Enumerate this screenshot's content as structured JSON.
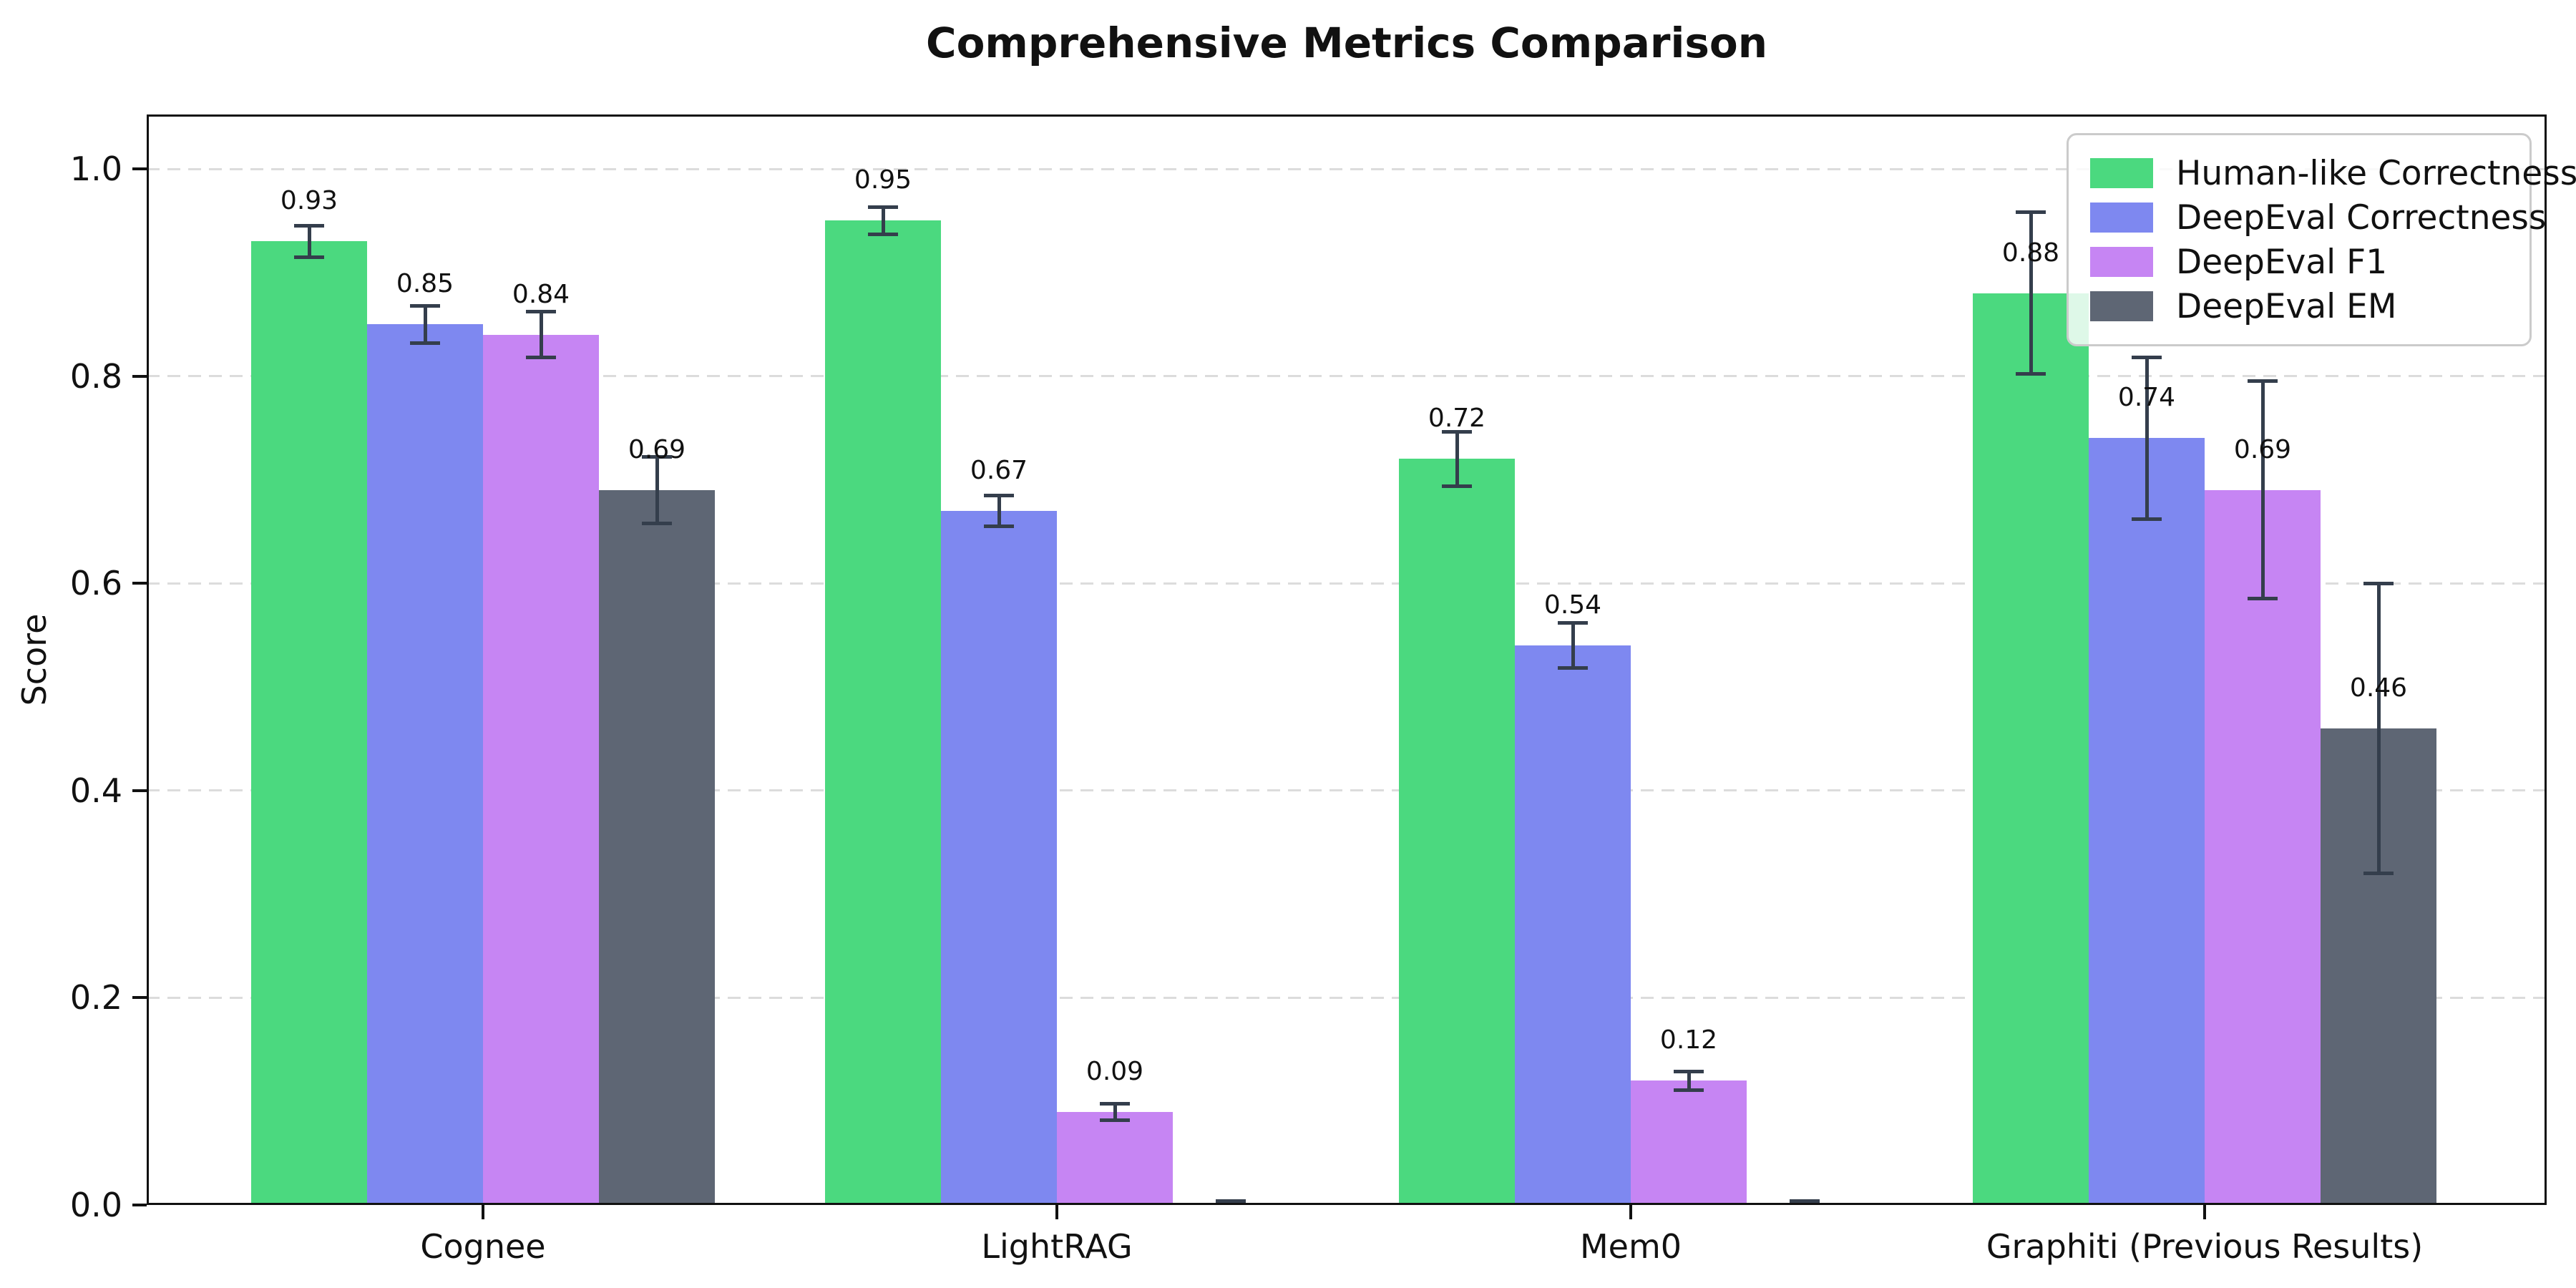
{
  "chart_data": {
    "type": "bar",
    "title": "Comprehensive Metrics Comparison",
    "xlabel": "",
    "ylabel": "Score",
    "ylim": [
      0,
      1.05
    ],
    "grid": "horizontal-dashed",
    "legend_position": "upper-right",
    "categories": [
      "Cognee",
      "LightRAG",
      "Mem0",
      "Graphiti (Previous Results)"
    ],
    "yticks": [
      0.0,
      0.2,
      0.4,
      0.6,
      0.8,
      1.0
    ],
    "ytick_labels": [
      "0.0",
      "0.2",
      "0.4",
      "0.6",
      "0.8",
      "1.0"
    ],
    "series": [
      {
        "name": "Human-like Correctness",
        "color": "#4bd97f",
        "values": [
          0.93,
          0.95,
          0.72,
          0.88
        ],
        "errors": [
          0.015,
          0.013,
          0.026,
          0.078
        ],
        "labels": [
          "0.93",
          "0.95",
          "0.72",
          "0.88"
        ]
      },
      {
        "name": "DeepEval Correctness",
        "color": "#7e88f0",
        "values": [
          0.85,
          0.67,
          0.54,
          0.74
        ],
        "errors": [
          0.018,
          0.015,
          0.022,
          0.078
        ],
        "labels": [
          "0.85",
          "0.67",
          "0.54",
          "0.74"
        ]
      },
      {
        "name": "DeepEval F1",
        "color": "#c685f3",
        "values": [
          0.84,
          0.09,
          0.12,
          0.69
        ],
        "errors": [
          0.022,
          0.008,
          0.009,
          0.105
        ],
        "labels": [
          "0.84",
          "0.09",
          "0.12",
          "0.69"
        ]
      },
      {
        "name": "DeepEval EM",
        "color": "#5e6674",
        "values": [
          0.69,
          0.0,
          0.0,
          0.46
        ],
        "errors": [
          0.032,
          0.004,
          0.004,
          0.14
        ],
        "labels": [
          "0.69",
          "",
          "",
          "0.46"
        ]
      }
    ],
    "colors": {
      "background": "#ffffff",
      "grid": "#dcdcdc",
      "spine": "#111111",
      "error_bar": "#343e4c",
      "text": "#111111",
      "legend_border": "#cbcbcb"
    }
  }
}
